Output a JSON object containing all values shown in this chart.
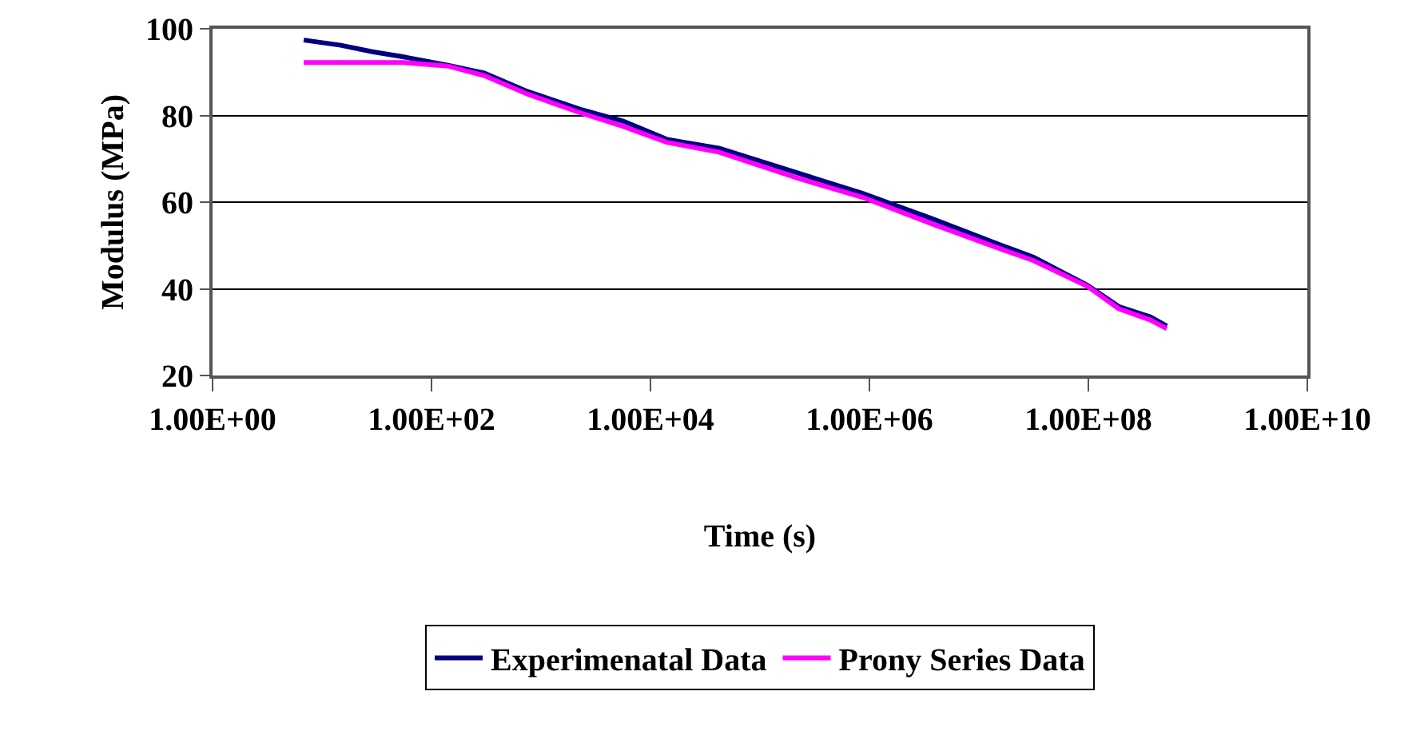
{
  "chart_data": {
    "type": "line",
    "xlabel": "Time (s)",
    "ylabel": "Modulus (MPa)",
    "log": "x",
    "x": [
      6.8,
      14.8,
      28.8,
      56,
      141,
      302,
      759,
      2290,
      5620,
      14100.0,
      42700.0,
      229000.0,
      870000.0,
      3720000.0,
      16200000.0,
      31600000.0,
      98000000.0,
      190000000.0,
      370000000.0,
      520000000.0
    ],
    "series": [
      {
        "name": "Experimenatal Data",
        "color": "#000080",
        "values": [
          97.4,
          96.2,
          94.7,
          93.5,
          91.6,
          89.8,
          85.5,
          81.4,
          78.7,
          74.5,
          72.4,
          66.6,
          62.0,
          56.2,
          50.0,
          47.3,
          40.8,
          35.9,
          33.5,
          31.4
        ]
      },
      {
        "name": "Prony Series Data",
        "color": "#ff00ff",
        "values": [
          92.2,
          92.2,
          92.2,
          92.2,
          91.4,
          89.2,
          84.9,
          80.6,
          77.5,
          73.8,
          71.5,
          65.4,
          61.1,
          55.0,
          49.1,
          46.5,
          40.6,
          35.4,
          32.8,
          30.8
        ]
      }
    ],
    "xlim": [
      1,
      10000000000.0
    ],
    "xticks": [
      {
        "value": 1,
        "label": "1.00E+00"
      },
      {
        "value": 100,
        "label": "1.00E+02"
      },
      {
        "value": 10000.0,
        "label": "1.00E+04"
      },
      {
        "value": 1000000.0,
        "label": "1.00E+06"
      },
      {
        "value": 100000000.0,
        "label": "1.00E+08"
      },
      {
        "value": 10000000000.0,
        "label": "1.00E+10"
      }
    ],
    "ylim": [
      20,
      100
    ],
    "yticks": [
      20,
      40,
      60,
      80,
      100
    ],
    "grid": "y",
    "legend": "bottom",
    "marker": "none",
    "line_style": "solid"
  }
}
